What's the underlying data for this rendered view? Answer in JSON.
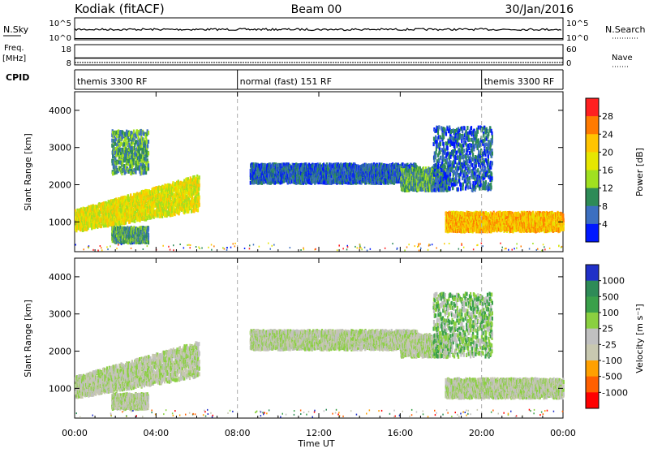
{
  "header": {
    "station": "Kodiak (fitACF)",
    "beam": "Beam 00",
    "date": "30/Jan/2016"
  },
  "status_panels": {
    "nsky_label": "N.Sky",
    "nsearch_label": "N.Search",
    "nsky_ticks": [
      "10^5",
      "10^0"
    ],
    "nsearch_ticks": [
      "10^5",
      "10^0"
    ],
    "freq_label": "Freq.",
    "freq_unit": "[MHz]",
    "freq_ticks": [
      "18",
      "8"
    ],
    "nave_label": "Nave",
    "nave_ticks": [
      "60",
      "0"
    ],
    "cpid_label": "CPID",
    "cpid_segments": [
      {
        "label": "themis 3300 RF",
        "start": 0,
        "end": 8
      },
      {
        "label": "normal (fast) 151 RF",
        "start": 8,
        "end": 20
      },
      {
        "label": "themis 3300 RF",
        "start": 20,
        "end": 24
      }
    ]
  },
  "chart_data": [
    {
      "type": "heatmap",
      "name": "power",
      "ylabel": "Slant Range [km]",
      "xlabel": "Time UT",
      "xlim": [
        0,
        24
      ],
      "ylim": [
        200,
        4500
      ],
      "yticks": [
        1000,
        2000,
        3000,
        4000
      ],
      "ytick_labels": [
        "1000",
        "2000",
        "3000",
        "4000"
      ],
      "colorbar_label": "Power [dB]",
      "colorbar_ticks": [
        "28",
        "24",
        "20",
        "16",
        "12",
        "8",
        "4"
      ],
      "colorbar_colors": [
        "#ff2020",
        "#ff7a00",
        "#ffc400",
        "#e6e600",
        "#a0e020",
        "#2e8b57",
        "#3c6fc0",
        "#0018ff"
      ],
      "regions": [
        {
          "t0": 0.0,
          "t1": 6.1,
          "r0": 800,
          "r1": 1350,
          "r1end": 2300,
          "level": 3
        },
        {
          "t0": 1.8,
          "t1": 3.6,
          "r0": 500,
          "r1": 900,
          "level": 5
        },
        {
          "t0": 1.8,
          "t1": 3.6,
          "r0": 2350,
          "r1": 3500,
          "level": 5
        },
        {
          "t0": 8.6,
          "t1": 16.8,
          "r0": 2100,
          "r1": 2600,
          "level": 6
        },
        {
          "t0": 16.0,
          "t1": 18.4,
          "r0": 1900,
          "r1": 2500,
          "level": 5
        },
        {
          "t0": 18.2,
          "t1": 24.0,
          "r0": 800,
          "r1": 1300,
          "level": 2
        },
        {
          "t0": 17.6,
          "t1": 20.5,
          "r0": 1900,
          "r1": 3600,
          "level": 6
        }
      ]
    },
    {
      "type": "heatmap",
      "name": "velocity",
      "ylabel": "Slant Range [km]",
      "xlabel": "Time UT",
      "xlim": [
        0,
        24
      ],
      "ylim": [
        200,
        4500
      ],
      "yticks": [
        1000,
        2000,
        3000,
        4000
      ],
      "ytick_labels": [
        "1000",
        "2000",
        "3000",
        "4000"
      ],
      "colorbar_label": "Velocity [m s⁻¹]",
      "colorbar_ticks": [
        "1000",
        "500",
        "100",
        "25",
        "-25",
        "-100",
        "-500",
        "-1000"
      ],
      "colorbar_colors": [
        "#2030c8",
        "#2e8b57",
        "#3aa04a",
        "#8ad040",
        "#c0c0c0",
        "#c8c8b0",
        "#ffa000",
        "#ff6000",
        "#ff0000"
      ],
      "regions": [
        {
          "t0": 0.0,
          "t1": 6.1,
          "r0": 800,
          "r1": 1350,
          "r1end": 2300,
          "level": 4
        },
        {
          "t0": 1.8,
          "t1": 3.6,
          "r0": 500,
          "r1": 900,
          "level": 4
        },
        {
          "t0": 8.6,
          "t1": 16.8,
          "r0": 2100,
          "r1": 2600,
          "level": 4
        },
        {
          "t0": 16.0,
          "t1": 18.4,
          "r0": 1900,
          "r1": 2500,
          "level": 4
        },
        {
          "t0": 18.2,
          "t1": 24.0,
          "r0": 800,
          "r1": 1300,
          "level": 4
        },
        {
          "t0": 17.6,
          "t1": 20.5,
          "r0": 1900,
          "r1": 3600,
          "level": 3
        }
      ]
    }
  ],
  "xaxis": {
    "ticks": [
      0,
      4,
      8,
      12,
      16,
      20,
      24
    ],
    "tick_labels": [
      "00:00",
      "04:00",
      "08:00",
      "12:00",
      "16:00",
      "20:00",
      "00:00"
    ],
    "label": "Time UT",
    "mode_change_times": [
      8,
      20
    ]
  }
}
